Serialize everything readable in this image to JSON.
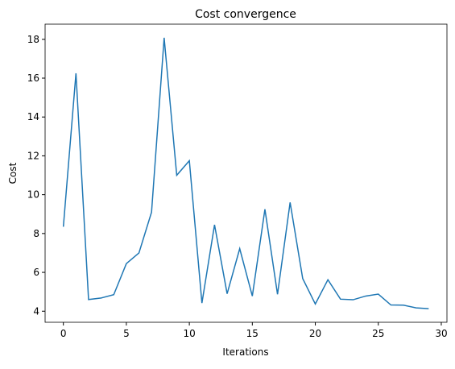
{
  "chart_data": {
    "type": "line",
    "title": "Cost convergence",
    "x_label": "Iterations",
    "y_label": "Cost",
    "x": [
      0,
      1,
      2,
      3,
      4,
      5,
      6,
      7,
      8,
      9,
      10,
      11,
      12,
      13,
      14,
      15,
      16,
      17,
      18,
      19,
      20,
      21,
      22,
      23,
      24,
      25,
      26,
      27,
      28,
      29
    ],
    "series": [
      {
        "name": "Cost",
        "color": "#1f77b4",
        "values": [
          8.35,
          16.25,
          4.6,
          4.68,
          4.85,
          6.45,
          7.0,
          9.1,
          18.08,
          11.0,
          11.75,
          4.42,
          8.45,
          4.9,
          7.22,
          4.78,
          9.25,
          4.87,
          9.6,
          5.68,
          4.37,
          5.62,
          4.62,
          4.59,
          4.78,
          4.88,
          4.32,
          4.31,
          4.17,
          4.13
        ]
      }
    ],
    "xlim": [
      -1.45,
      30.45
    ],
    "xticks": [
      0,
      5,
      10,
      15,
      20,
      25,
      30
    ],
    "ylim": [
      3.43,
      18.78
    ],
    "yticks": [
      4,
      6,
      8,
      10,
      12,
      14,
      16,
      18
    ],
    "grid": false
  }
}
